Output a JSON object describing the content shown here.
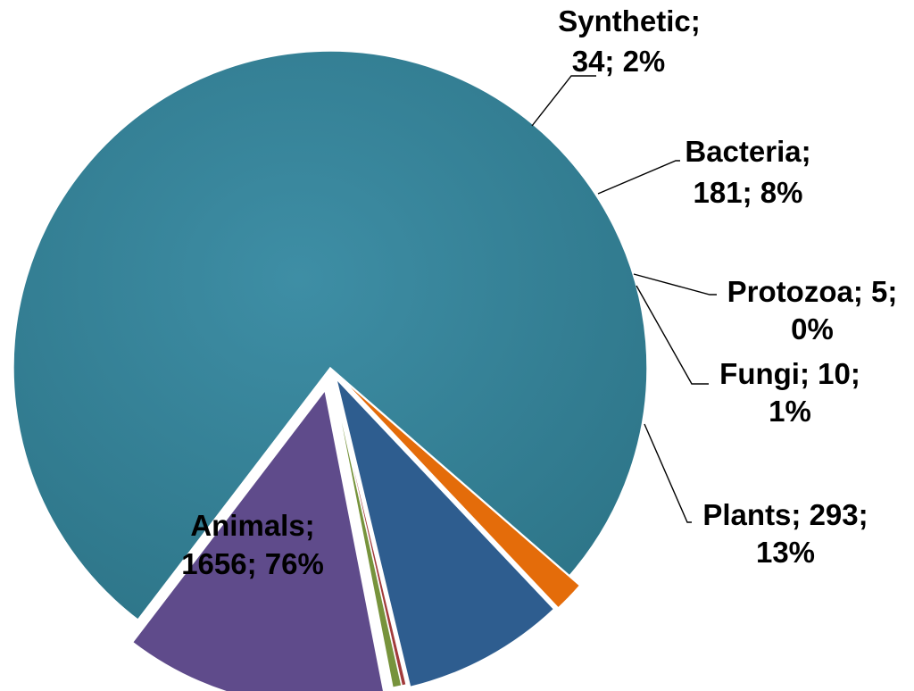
{
  "chart_data": {
    "type": "pie",
    "title": "",
    "slices": [
      {
        "name": "Animals",
        "value": 1656,
        "percent": "76%",
        "color": "#31859c",
        "label_line1": "Animals;",
        "label_line2": "1656; 76%"
      },
      {
        "name": "Synthetic",
        "value": 34,
        "percent": "2%",
        "color": "#e46c0a",
        "label_line1": "Synthetic;",
        "label_line2": "34; 2%"
      },
      {
        "name": "Bacteria",
        "value": 181,
        "percent": "8%",
        "color": "#2e5d8f",
        "label_line1": "Bacteria;",
        "label_line2": "181; 8%"
      },
      {
        "name": "Protozoa",
        "value": 5,
        "percent": "0%",
        "color": "#a23b3b",
        "label_line1": "Protozoa; 5;",
        "label_line2": "0%"
      },
      {
        "name": "Fungi",
        "value": 10,
        "percent": "1%",
        "color": "#77933c",
        "label_line1": "Fungi;  10;",
        "label_line2": "1%"
      },
      {
        "name": "Plants",
        "value": 293,
        "percent": "13%",
        "color": "#5f4b8b",
        "label_line1": "Plants;  293;",
        "label_line2": "13%"
      }
    ],
    "legend": "none",
    "exploded": true
  }
}
